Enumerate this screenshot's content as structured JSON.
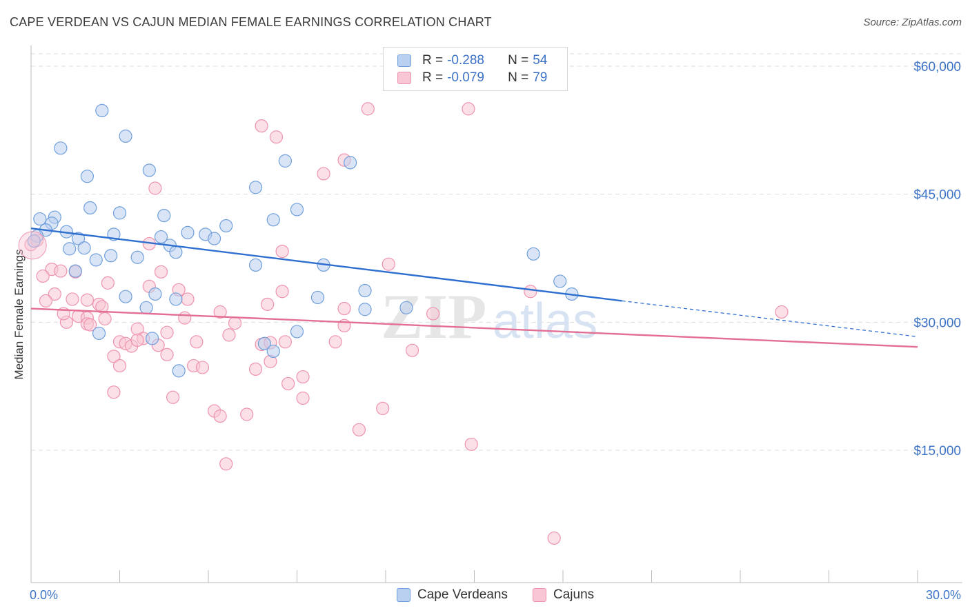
{
  "header": {
    "title": "CAPE VERDEAN VS CAJUN MEDIAN FEMALE EARNINGS CORRELATION CHART",
    "source": "Source: ZipAtlas.com"
  },
  "watermark": {
    "zip": "ZIP",
    "atlas": "atlas"
  },
  "legend_top": {
    "rows": [
      {
        "r_label": "R =",
        "r_value": "-0.288",
        "n_label": "N =",
        "n_value": "54"
      },
      {
        "r_label": "R =",
        "r_value": "-0.079",
        "n_label": "N =",
        "n_value": "79"
      }
    ]
  },
  "legend_bottom": {
    "series1": "Cape Verdeans",
    "series2": "Cajuns"
  },
  "colors": {
    "blue_fill": "#b9d0f0",
    "blue_stroke": "#6f9fdb",
    "blue_line": "#2f6fd0",
    "pink_fill": "#f8c6d4",
    "pink_stroke": "#ee93ae",
    "pink_line": "#e46f95",
    "tick_text": "#3d73c6",
    "grid": "#dddddd"
  },
  "chart_data": {
    "type": "scatter",
    "title": "CAPE VERDEAN VS CAJUN MEDIAN FEMALE EARNINGS CORRELATION CHART",
    "xlabel": "",
    "ylabel": "Median Female Earnings",
    "xlim": [
      0,
      30
    ],
    "ylim": [
      2500,
      63000
    ],
    "x_tick_labels": [
      "0.0%",
      "30.0%"
    ],
    "y_ticks": [
      15000,
      30000,
      45000,
      60000
    ],
    "y_tick_labels": [
      "$15,000",
      "$30,000",
      "$45,000",
      "$60,000"
    ],
    "grid": "horizontal dashed",
    "series": [
      {
        "name": "Cape Verdeans",
        "r": -0.288,
        "n": 54,
        "trend": {
          "x": [
            0,
            20
          ],
          "y": [
            41000,
            32500
          ],
          "dashed_x": [
            20,
            30
          ],
          "dashed_y": [
            32500,
            28300
          ]
        },
        "points": [
          [
            2.4,
            54800
          ],
          [
            3.2,
            51800
          ],
          [
            1.0,
            50400
          ],
          [
            4.0,
            47800
          ],
          [
            8.6,
            48900
          ],
          [
            10.8,
            48700
          ],
          [
            1.9,
            47100
          ],
          [
            7.6,
            45800
          ],
          [
            2.0,
            43400
          ],
          [
            3.0,
            42800
          ],
          [
            4.5,
            42500
          ],
          [
            8.2,
            42000
          ],
          [
            9.0,
            43200
          ],
          [
            0.3,
            42100
          ],
          [
            0.8,
            42300
          ],
          [
            0.7,
            41600
          ],
          [
            6.6,
            41300
          ],
          [
            0.5,
            40800
          ],
          [
            1.2,
            40600
          ],
          [
            2.8,
            40300
          ],
          [
            5.3,
            40500
          ],
          [
            5.9,
            40300
          ],
          [
            6.2,
            39800
          ],
          [
            4.4,
            40000
          ],
          [
            0.2,
            40100
          ],
          [
            1.6,
            39800
          ],
          [
            4.7,
            39000
          ],
          [
            1.3,
            38600
          ],
          [
            1.8,
            38700
          ],
          [
            4.9,
            38200
          ],
          [
            2.7,
            37800
          ],
          [
            3.6,
            37600
          ],
          [
            2.2,
            37300
          ],
          [
            7.6,
            36700
          ],
          [
            9.9,
            36700
          ],
          [
            17.0,
            38000
          ],
          [
            1.5,
            36000
          ],
          [
            17.9,
            34800
          ],
          [
            11.3,
            33700
          ],
          [
            3.2,
            33000
          ],
          [
            4.2,
            33300
          ],
          [
            9.7,
            32900
          ],
          [
            18.3,
            33300
          ],
          [
            4.9,
            32700
          ],
          [
            3.9,
            31700
          ],
          [
            11.3,
            31500
          ],
          [
            12.7,
            31700
          ],
          [
            2.3,
            28700
          ],
          [
            9.0,
            28900
          ],
          [
            4.1,
            28100
          ],
          [
            7.9,
            27500
          ],
          [
            8.2,
            26600
          ],
          [
            5.0,
            24300
          ],
          [
            0.1,
            39500
          ]
        ]
      },
      {
        "name": "Cajuns",
        "r": -0.079,
        "n": 79,
        "trend": {
          "x": [
            0,
            30
          ],
          "y": [
            31600,
            27100
          ]
        },
        "points": [
          [
            11.4,
            55000
          ],
          [
            14.8,
            55000
          ],
          [
            7.8,
            53000
          ],
          [
            8.3,
            51700
          ],
          [
            10.6,
            49000
          ],
          [
            9.9,
            47400
          ],
          [
            4.2,
            45700
          ],
          [
            0.0,
            39100
          ],
          [
            0.2,
            39600
          ],
          [
            4.0,
            39200
          ],
          [
            8.5,
            38300
          ],
          [
            12.1,
            36800
          ],
          [
            0.7,
            36200
          ],
          [
            1.0,
            36000
          ],
          [
            1.5,
            35900
          ],
          [
            4.4,
            35900
          ],
          [
            0.4,
            35400
          ],
          [
            2.6,
            34600
          ],
          [
            4.0,
            34200
          ],
          [
            5.0,
            33800
          ],
          [
            8.5,
            33600
          ],
          [
            16.9,
            33600
          ],
          [
            0.8,
            33300
          ],
          [
            1.4,
            32700
          ],
          [
            1.9,
            32600
          ],
          [
            5.3,
            32700
          ],
          [
            0.5,
            32500
          ],
          [
            8.0,
            32100
          ],
          [
            2.3,
            32100
          ],
          [
            2.4,
            31800
          ],
          [
            10.6,
            31600
          ],
          [
            6.4,
            31200
          ],
          [
            13.6,
            31000
          ],
          [
            25.4,
            31200
          ],
          [
            1.6,
            30700
          ],
          [
            1.9,
            30500
          ],
          [
            2.5,
            30400
          ],
          [
            5.2,
            30500
          ],
          [
            1.2,
            30000
          ],
          [
            1.9,
            29800
          ],
          [
            2.0,
            29700
          ],
          [
            6.9,
            29900
          ],
          [
            10.6,
            29600
          ],
          [
            3.6,
            29200
          ],
          [
            4.6,
            28800
          ],
          [
            6.7,
            28500
          ],
          [
            3.0,
            27700
          ],
          [
            3.2,
            27500
          ],
          [
            3.4,
            27200
          ],
          [
            3.8,
            28100
          ],
          [
            4.3,
            27300
          ],
          [
            5.6,
            27700
          ],
          [
            7.8,
            27400
          ],
          [
            8.1,
            27600
          ],
          [
            8.6,
            27700
          ],
          [
            10.3,
            27700
          ],
          [
            12.9,
            26700
          ],
          [
            2.8,
            26000
          ],
          [
            4.6,
            26200
          ],
          [
            8.1,
            25400
          ],
          [
            3.0,
            24900
          ],
          [
            5.5,
            24900
          ],
          [
            5.8,
            24700
          ],
          [
            7.6,
            24500
          ],
          [
            9.2,
            23600
          ],
          [
            8.7,
            22800
          ],
          [
            2.8,
            21800
          ],
          [
            4.8,
            21200
          ],
          [
            9.2,
            21100
          ],
          [
            6.2,
            19600
          ],
          [
            6.4,
            19000
          ],
          [
            7.3,
            19200
          ],
          [
            11.9,
            19900
          ],
          [
            11.1,
            17400
          ],
          [
            14.9,
            15700
          ],
          [
            6.6,
            13400
          ],
          [
            17.7,
            4700
          ],
          [
            1.1,
            31000
          ],
          [
            3.6,
            27900
          ]
        ]
      }
    ]
  }
}
